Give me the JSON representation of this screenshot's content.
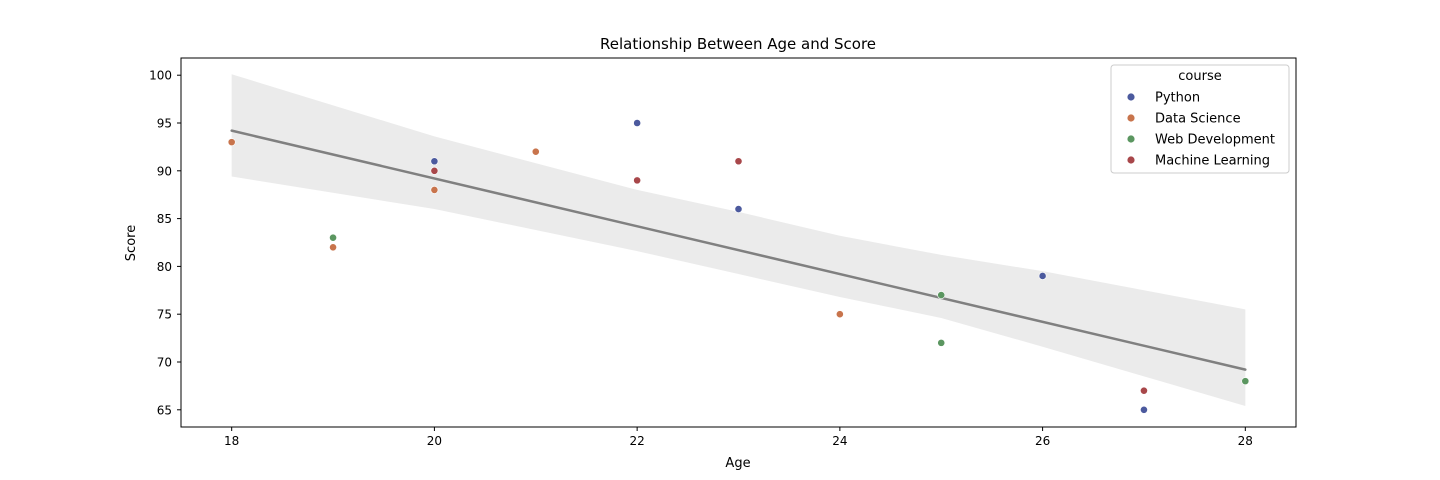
{
  "chart_data": {
    "type": "scatter",
    "title": "Relationship Between Age and Score",
    "xlabel": "Age",
    "ylabel": "Score",
    "xlim": [
      17.5,
      28.5
    ],
    "ylim": [
      63.2,
      101.8
    ],
    "xticks": [
      18,
      20,
      22,
      24,
      26,
      28
    ],
    "yticks": [
      65,
      70,
      75,
      80,
      85,
      90,
      95,
      100
    ],
    "grid": false,
    "legend": {
      "title": "course",
      "placement": "top-right"
    },
    "series": [
      {
        "name": "Python",
        "color": "#4c5a9e",
        "points": [
          [
            20,
            91
          ],
          [
            22,
            95
          ],
          [
            23,
            86
          ],
          [
            26,
            79
          ],
          [
            27,
            65
          ]
        ]
      },
      {
        "name": "Data Science",
        "color": "#c8744c",
        "points": [
          [
            18,
            93
          ],
          [
            19,
            82
          ],
          [
            20,
            88
          ],
          [
            21,
            92
          ],
          [
            24,
            75
          ]
        ]
      },
      {
        "name": "Web Development",
        "color": "#5b9660",
        "points": [
          [
            19,
            83
          ],
          [
            25,
            77
          ],
          [
            25,
            72
          ],
          [
            28,
            68
          ]
        ]
      },
      {
        "name": "Machine Learning",
        "color": "#a8474a",
        "points": [
          [
            20,
            90
          ],
          [
            22,
            89
          ],
          [
            23,
            91
          ],
          [
            27,
            67
          ]
        ]
      }
    ],
    "regression": {
      "color": "#808080",
      "ci_color": "#ebebeb",
      "x": [
        18,
        28
      ],
      "y": [
        94.2,
        69.2
      ],
      "ci_upper": [
        [
          18,
          100.1
        ],
        [
          20,
          93.6
        ],
        [
          22,
          88.0
        ],
        [
          23,
          85.7
        ],
        [
          24,
          83.2
        ],
        [
          25,
          81.2
        ],
        [
          26,
          79.5
        ],
        [
          27,
          77.5
        ],
        [
          28,
          75.5
        ]
      ],
      "ci_lower": [
        [
          18,
          89.4
        ],
        [
          20,
          86.0
        ],
        [
          22,
          81.6
        ],
        [
          23,
          79.2
        ],
        [
          24,
          76.8
        ],
        [
          25,
          74.6
        ],
        [
          26,
          71.6
        ],
        [
          27,
          68.5
        ],
        [
          28,
          65.4
        ]
      ]
    }
  }
}
